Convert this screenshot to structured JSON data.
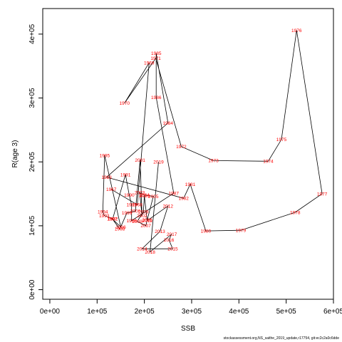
{
  "chart_data": {
    "type": "line",
    "xlabel": "SSB",
    "ylabel": "R(age 3)",
    "xlim": [
      -15000,
      600000
    ],
    "ylim": [
      -15000,
      440000
    ],
    "x_ticks": [
      0,
      100000,
      200000,
      300000,
      400000,
      500000,
      600000
    ],
    "x_tick_labels": [
      "0e+00",
      "1e+05",
      "2e+05",
      "3e+05",
      "4e+05",
      "5e+05",
      "6e+05"
    ],
    "y_ticks": [
      0,
      100000,
      200000,
      300000,
      400000
    ],
    "y_tick_labels": [
      "0e+00",
      "1e+05",
      "2e+05",
      "3e+05",
      "4e+05"
    ],
    "line_color": "#000000",
    "label_color": "#ff0000",
    "footnote": "stockassessment.org,NS_saithe_2019_update,r17754, git:ec2c2a0c6dde",
    "points": [
      {
        "label": "1967",
        "x": 130000,
        "y": 157000
      },
      {
        "label": "1968",
        "x": 185000,
        "y": 133000
      },
      {
        "label": "1969",
        "x": 210000,
        "y": 355000
      },
      {
        "label": "1970",
        "x": 158000,
        "y": 292000
      },
      {
        "label": "1971",
        "x": 224000,
        "y": 362000
      },
      {
        "label": "1972",
        "x": 278000,
        "y": 224000
      },
      {
        "label": "1973",
        "x": 346000,
        "y": 202000
      },
      {
        "label": "1974",
        "x": 462000,
        "y": 201000
      },
      {
        "label": "1975",
        "x": 490000,
        "y": 235000
      },
      {
        "label": "1976",
        "x": 522000,
        "y": 406000
      },
      {
        "label": "1977",
        "x": 576000,
        "y": 150000
      },
      {
        "label": "1978",
        "x": 519000,
        "y": 121000
      },
      {
        "label": "1979",
        "x": 404000,
        "y": 93000
      },
      {
        "label": "1980",
        "x": 330000,
        "y": 92000
      },
      {
        "label": "1981",
        "x": 297000,
        "y": 165000
      },
      {
        "label": "1982",
        "x": 283000,
        "y": 143000
      },
      {
        "label": "1983",
        "x": 120000,
        "y": 176000
      },
      {
        "label": "1984",
        "x": 250000,
        "y": 261000
      },
      {
        "label": "1985",
        "x": 225000,
        "y": 370000
      },
      {
        "label": "1986",
        "x": 225000,
        "y": 301000
      },
      {
        "label": "1987",
        "x": 262000,
        "y": 151000
      },
      {
        "label": "1988",
        "x": 173000,
        "y": 108000
      },
      {
        "label": "1989",
        "x": 173000,
        "y": 133000
      },
      {
        "label": "1990",
        "x": 168000,
        "y": 148000
      },
      {
        "label": "1991",
        "x": 160000,
        "y": 180000
      },
      {
        "label": "1992",
        "x": 133000,
        "y": 111000
      },
      {
        "label": "1993",
        "x": 115000,
        "y": 116000
      },
      {
        "label": "1994",
        "x": 112000,
        "y": 122000
      },
      {
        "label": "1995",
        "x": 116000,
        "y": 210000
      },
      {
        "label": "1996",
        "x": 150000,
        "y": 98000
      },
      {
        "label": "1997",
        "x": 132000,
        "y": 111000
      },
      {
        "label": "1998",
        "x": 148000,
        "y": 95000
      },
      {
        "label": "1999",
        "x": 163000,
        "y": 120000
      },
      {
        "label": "2000",
        "x": 181000,
        "y": 123000
      },
      {
        "label": "2001",
        "x": 191000,
        "y": 203000
      },
      {
        "label": "2002",
        "x": 195000,
        "y": 116000
      },
      {
        "label": "2003",
        "x": 190000,
        "y": 152000
      },
      {
        "label": "2004",
        "x": 200000,
        "y": 148000
      },
      {
        "label": "2005",
        "x": 219000,
        "y": 146000
      },
      {
        "label": "2006",
        "x": 206000,
        "y": 109000
      },
      {
        "label": "2007",
        "x": 203000,
        "y": 100000
      },
      {
        "label": "2008",
        "x": 185000,
        "y": 107000
      },
      {
        "label": "2009",
        "x": 198000,
        "y": 122000
      },
      {
        "label": "2010",
        "x": 200000,
        "y": 147000
      },
      {
        "label": "2011",
        "x": 206000,
        "y": 108000
      },
      {
        "label": "2012",
        "x": 250000,
        "y": 131000
      },
      {
        "label": "2013",
        "x": 233000,
        "y": 91000
      },
      {
        "label": "2014",
        "x": 195000,
        "y": 64000
      },
      {
        "label": "2015",
        "x": 260000,
        "y": 64000
      },
      {
        "label": "2016",
        "x": 252000,
        "y": 78000
      },
      {
        "label": "2017",
        "x": 258000,
        "y": 87000
      },
      {
        "label": "2018",
        "x": 212000,
        "y": 59000
      },
      {
        "label": "2019",
        "x": 230000,
        "y": 200000
      }
    ]
  }
}
